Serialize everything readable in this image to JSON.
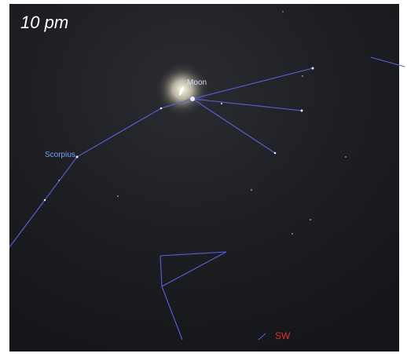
{
  "time_label": "10 pm",
  "labels": {
    "moon": "Moon",
    "constellation": "Scorpius",
    "direction": "SW"
  }
}
